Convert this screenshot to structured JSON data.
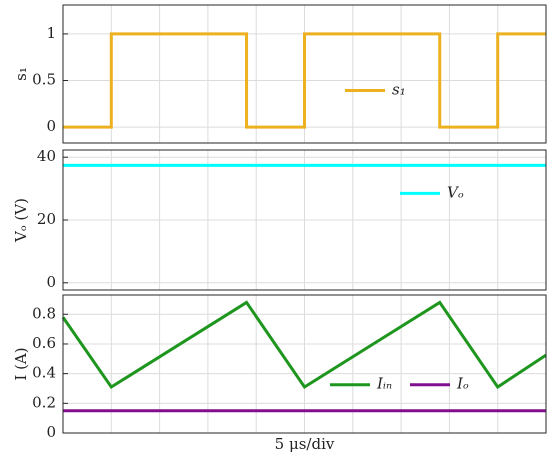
{
  "chart_data": [
    {
      "type": "line",
      "ylabel": "s₁",
      "x": [
        0,
        1,
        1,
        3.8,
        3.8,
        5,
        5,
        7.8,
        7.8,
        9,
        9,
        10
      ],
      "series": [
        {
          "name": "s₁",
          "color": "#EDB120",
          "values": [
            0,
            0,
            1,
            1,
            0,
            0,
            1,
            1,
            0,
            0,
            1,
            1
          ]
        }
      ],
      "xlim": [
        0,
        10
      ],
      "xticks": [
        0,
        1,
        2,
        3,
        4,
        5,
        6,
        7,
        8,
        9,
        10
      ],
      "x_tick_labels": false,
      "ylim": [
        -0.17,
        1.31
      ],
      "yticks": [
        0,
        0.5,
        1
      ],
      "grid": true,
      "legend": "center"
    },
    {
      "type": "line",
      "ylabel": "Vₒ (V)",
      "x": [
        0,
        10
      ],
      "series": [
        {
          "name": "Vₒ",
          "color": "#00FFFF",
          "values": [
            37.4,
            37.4
          ]
        }
      ],
      "xlim": [
        0,
        10
      ],
      "xticks": [
        0,
        1,
        2,
        3,
        4,
        5,
        6,
        7,
        8,
        9,
        10
      ],
      "x_tick_labels": false,
      "ylim": [
        -2.3,
        42.3
      ],
      "yticks": [
        0,
        20,
        40
      ],
      "grid": true,
      "legend": "upper right"
    },
    {
      "type": "line",
      "ylabel": "I (A)",
      "xlabel": "5 μs/div",
      "x": [
        0,
        1,
        3.8,
        5,
        7.8,
        9,
        10
      ],
      "series": [
        {
          "name": "Iᵢₙ",
          "color": "#1E961E",
          "values": [
            0.78,
            0.31,
            0.88,
            0.31,
            0.88,
            0.31,
            0.525
          ]
        },
        {
          "name": "Iₒ",
          "color": "#800E8E",
          "values": [
            0.15,
            0.15,
            0.15,
            0.15,
            0.15,
            0.15,
            0.15
          ]
        }
      ],
      "xlim": [
        0,
        10
      ],
      "xticks": [
        0,
        1,
        2,
        3,
        4,
        5,
        6,
        7,
        8,
        9,
        10
      ],
      "x_tick_labels": false,
      "ylim": [
        0,
        0.93
      ],
      "yticks": [
        0,
        0.2,
        0.4,
        0.6,
        0.8
      ],
      "grid": true,
      "legend": "lower right"
    }
  ]
}
